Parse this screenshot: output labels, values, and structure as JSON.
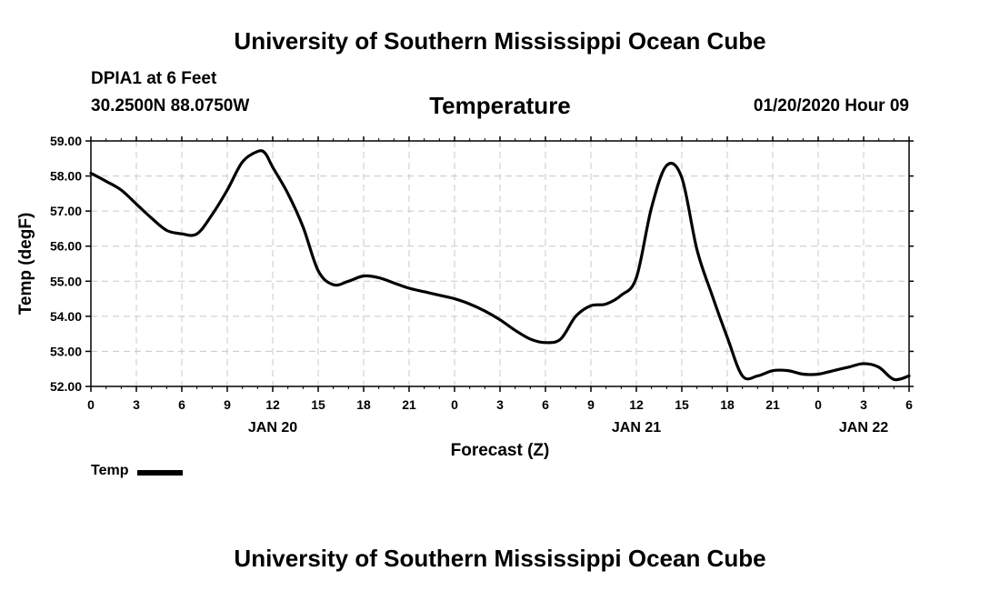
{
  "header": {
    "title": "University of Southern Mississippi Ocean Cube",
    "station": "DPIA1 at 6 Feet",
    "coordinates": "30.2500N 88.0750W",
    "issued": "01/20/2020 Hour 09"
  },
  "footer": {
    "title": "University of Southern Mississippi Ocean Cube"
  },
  "chart_data": {
    "type": "line",
    "title": "Temperature",
    "xlabel": "Forecast (Z)",
    "ylabel": "Temp (degF)",
    "ylim": [
      52.0,
      59.0
    ],
    "xlim": [
      0,
      54
    ],
    "y_ticks": [
      "52.00",
      "53.00",
      "54.00",
      "55.00",
      "56.00",
      "57.00",
      "58.00",
      "59.00"
    ],
    "x_ticks": [
      "0",
      "3",
      "6",
      "9",
      "12",
      "15",
      "18",
      "21",
      "0",
      "3",
      "6",
      "9",
      "12",
      "15",
      "18",
      "21",
      "0",
      "3",
      "6"
    ],
    "date_labels": [
      {
        "label": "JAN 20",
        "at_hour": 12
      },
      {
        "label": "JAN 21",
        "at_hour": 36
      },
      {
        "label": "JAN 22",
        "at_hour": 51
      }
    ],
    "grid": true,
    "legend": "bottom-left",
    "line_color": "#000000",
    "series": [
      {
        "name": "Temp",
        "x": [
          0,
          1,
          2,
          3,
          4,
          5,
          6,
          7,
          8,
          9,
          10,
          11,
          11.5,
          12,
          13,
          14,
          15,
          16,
          17,
          18,
          19,
          20,
          21,
          22,
          23,
          24,
          25,
          26,
          27,
          28,
          29,
          30,
          31,
          32,
          33,
          34,
          35,
          36,
          37,
          38,
          39,
          40,
          41,
          42,
          43,
          44,
          45,
          46,
          47,
          48,
          49,
          50,
          51,
          52,
          53,
          54
        ],
        "values": [
          58.08,
          57.85,
          57.6,
          57.2,
          56.8,
          56.45,
          56.35,
          56.35,
          56.9,
          57.6,
          58.4,
          58.7,
          58.65,
          58.25,
          57.5,
          56.55,
          55.3,
          54.9,
          55.0,
          55.15,
          55.1,
          54.95,
          54.8,
          54.7,
          54.6,
          54.5,
          54.35,
          54.15,
          53.9,
          53.6,
          53.35,
          53.25,
          53.35,
          54.0,
          54.3,
          54.35,
          54.6,
          55.1,
          57.1,
          58.3,
          57.95,
          55.9,
          54.6,
          53.4,
          52.3,
          52.3,
          52.45,
          52.45,
          52.35,
          52.35,
          52.45,
          52.55,
          52.65,
          52.55,
          52.2,
          52.3
        ]
      }
    ]
  }
}
